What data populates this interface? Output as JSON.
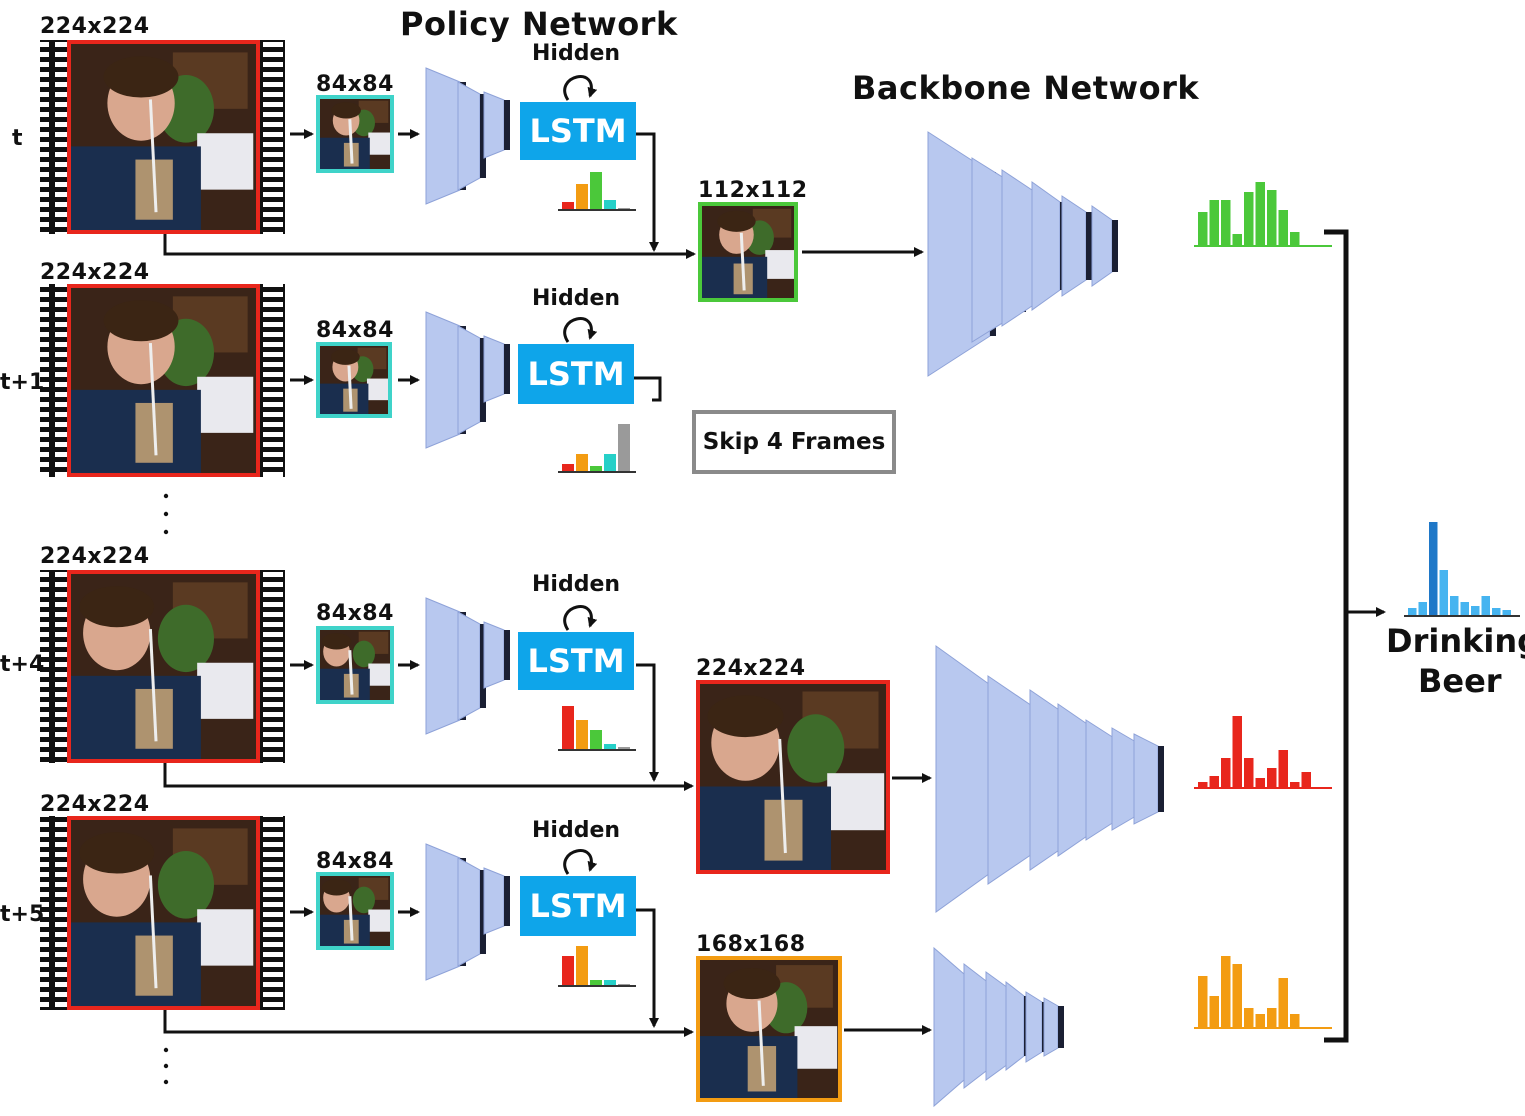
{
  "titles": {
    "policy": "Policy Network",
    "backbone": "Backbone Network"
  },
  "rows": [
    {
      "time": "t",
      "frame_size": "224x224",
      "policy_size": "84x84",
      "hidden": "Hidden",
      "lstm": "LSTM"
    },
    {
      "time": "t+1",
      "frame_size": "224x224",
      "policy_size": "84x84",
      "hidden": "Hidden",
      "lstm": "LSTM"
    },
    {
      "time": "t+4",
      "frame_size": "224x224",
      "policy_size": "84x84",
      "hidden": "Hidden",
      "lstm": "LSTM"
    },
    {
      "time": "t+5",
      "frame_size": "224x224",
      "policy_size": "84x84",
      "hidden": "Hidden",
      "lstm": "LSTM"
    }
  ],
  "selected_inputs": [
    {
      "size": "112x112",
      "color": "#4bc83a"
    },
    {
      "size": "224x224",
      "color": "#e8261c"
    },
    {
      "size": "168x168",
      "color": "#f39c12"
    }
  ],
  "skip_label": "Skip 4 Frames",
  "prediction": {
    "line1": "Drinking",
    "line2": "Beer"
  },
  "colors": {
    "lstm": "#0ea5ea",
    "frame_border": "#e8261c",
    "policy_border": "#3fd3c9",
    "layer_fill": "#b8c8ef",
    "layer_dark": "#1a1f33",
    "green": "#4bc83a",
    "red": "#e8261c",
    "orange": "#f39c12",
    "cyan": "#26d0c8",
    "gray": "#9a9a9a",
    "blue_dark": "#1f78c8",
    "blue_light": "#46b4f0"
  }
}
